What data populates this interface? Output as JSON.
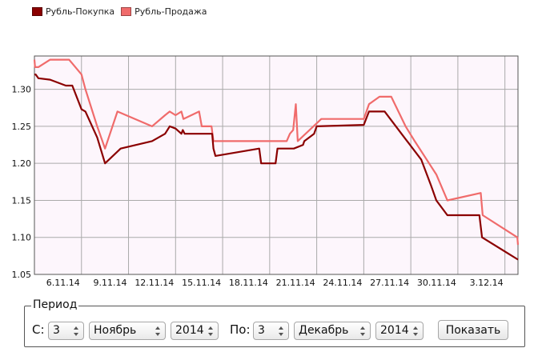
{
  "chart_data": {
    "type": "line",
    "title": "",
    "xlabel": "",
    "ylabel": "",
    "x_ticks": [
      "6.11.14",
      "9.11.14",
      "12.11.14",
      "15.11.14",
      "18.11.14",
      "21.11.14",
      "24.11.14",
      "27.11.14",
      "30.11.14",
      "3.12.14"
    ],
    "y_ticks": [
      "1.05",
      "1.10",
      "1.15",
      "1.20",
      "1.25",
      "1.30"
    ],
    "ylim": [
      1.05,
      1.345
    ],
    "xlim": [
      "2014-11-03",
      "2014-12-03T20:00"
    ],
    "grid": true,
    "legend_position": "top-left",
    "series": [
      {
        "name": "Рубль-Покупка",
        "color": "#8b0000",
        "points": [
          [
            "2014-11-03",
            1.32
          ],
          [
            "2014-11-03T02:00",
            1.32
          ],
          [
            "2014-11-03T06:00",
            1.315
          ],
          [
            "2014-11-04",
            1.313
          ],
          [
            "2014-11-05",
            1.305
          ],
          [
            "2014-11-05T10:00",
            1.305
          ],
          [
            "2014-11-06",
            1.273
          ],
          [
            "2014-11-06T06:00",
            1.27
          ],
          [
            "2014-11-07",
            1.235
          ],
          [
            "2014-11-07T12:00",
            1.2
          ],
          [
            "2014-11-08T12:00",
            1.22
          ],
          [
            "2014-11-10T12:00",
            1.23
          ],
          [
            "2014-11-11T08:00",
            1.24
          ],
          [
            "2014-11-11T15:00",
            1.25
          ],
          [
            "2014-11-12",
            1.247
          ],
          [
            "2014-11-12T09:00",
            1.24
          ],
          [
            "2014-11-12T11:00",
            1.245
          ],
          [
            "2014-11-12T14:00",
            1.24
          ],
          [
            "2014-11-14T08:00",
            1.24
          ],
          [
            "2014-11-14T10:00",
            1.22
          ],
          [
            "2014-11-14T13:00",
            1.21
          ],
          [
            "2014-11-17T08:00",
            1.22
          ],
          [
            "2014-11-17T11:00",
            1.2
          ],
          [
            "2014-11-18T09:00",
            1.2
          ],
          [
            "2014-11-18T12:00",
            1.22
          ],
          [
            "2014-11-19T13:00",
            1.22
          ],
          [
            "2014-11-20T03:00",
            1.225
          ],
          [
            "2014-11-20T05:00",
            1.23
          ],
          [
            "2014-11-20T20:00",
            1.24
          ],
          [
            "2014-11-21",
            1.25
          ],
          [
            "2014-11-24",
            1.252
          ],
          [
            "2014-11-24T08:00",
            1.27
          ],
          [
            "2014-11-25T08:00",
            1.27
          ],
          [
            "2014-11-26T14:00",
            1.235
          ],
          [
            "2014-11-27T16:00",
            1.205
          ],
          [
            "2014-11-28T07:00",
            1.17
          ],
          [
            "2014-11-28T15:00",
            1.15
          ],
          [
            "2014-11-29T08:00",
            1.13
          ],
          [
            "2014-12-01T09:00",
            1.13
          ],
          [
            "2014-12-01T13:00",
            1.1
          ],
          [
            "2014-12-03T20:00",
            1.07
          ]
        ]
      },
      {
        "name": "Рубль-Продажа",
        "color": "#f06b6b",
        "points": [
          [
            "2014-11-03",
            1.34
          ],
          [
            "2014-11-03T01:00",
            1.33
          ],
          [
            "2014-11-03T06:00",
            1.33
          ],
          [
            "2014-11-04",
            1.34
          ],
          [
            "2014-11-05T05:00",
            1.34
          ],
          [
            "2014-11-05T10:00",
            1.335
          ],
          [
            "2014-11-06",
            1.32
          ],
          [
            "2014-11-06T06:00",
            1.3
          ],
          [
            "2014-11-07",
            1.25
          ],
          [
            "2014-11-07T12:00",
            1.22
          ],
          [
            "2014-11-08T07:00",
            1.27
          ],
          [
            "2014-11-10T12:00",
            1.25
          ],
          [
            "2014-11-11T08:00",
            1.265
          ],
          [
            "2014-11-11T15:00",
            1.27
          ],
          [
            "2014-11-12",
            1.265
          ],
          [
            "2014-11-12T09:00",
            1.27
          ],
          [
            "2014-11-12T12:00",
            1.26
          ],
          [
            "2014-11-13T12:00",
            1.27
          ],
          [
            "2014-11-13T16:00",
            1.25
          ],
          [
            "2014-11-14T07:00",
            1.25
          ],
          [
            "2014-11-14T10:00",
            1.23
          ],
          [
            "2014-11-19T02:00",
            1.23
          ],
          [
            "2014-11-19T07:00",
            1.24
          ],
          [
            "2014-11-19T12:00",
            1.245
          ],
          [
            "2014-11-19T16:00",
            1.28
          ],
          [
            "2014-11-19T19:00",
            1.23
          ],
          [
            "2014-11-20T07:00",
            1.24
          ],
          [
            "2014-11-21T07:00",
            1.26
          ],
          [
            "2014-11-24",
            1.26
          ],
          [
            "2014-11-24T08:00",
            1.28
          ],
          [
            "2014-11-25",
            1.29
          ],
          [
            "2014-11-25T18:00",
            1.29
          ],
          [
            "2014-11-26T16:00",
            1.25
          ],
          [
            "2014-11-27T06:00",
            1.23
          ],
          [
            "2014-11-28T04:00",
            1.2
          ],
          [
            "2014-11-28T15:00",
            1.185
          ],
          [
            "2014-11-29T08:00",
            1.15
          ],
          [
            "2014-12-01T11:00",
            1.16
          ],
          [
            "2014-12-01T14:00",
            1.13
          ],
          [
            "2014-12-03T19:00",
            1.1
          ],
          [
            "2014-12-03T20:00",
            1.09
          ]
        ]
      }
    ]
  },
  "period": {
    "label": "Период",
    "from_label": "С:",
    "to_label": "По:",
    "from_day": "3",
    "from_month": "Ноябрь",
    "from_year": "2014",
    "to_day": "3",
    "to_month": "Декабрь",
    "to_year": "2014",
    "show_button": "Показать"
  }
}
